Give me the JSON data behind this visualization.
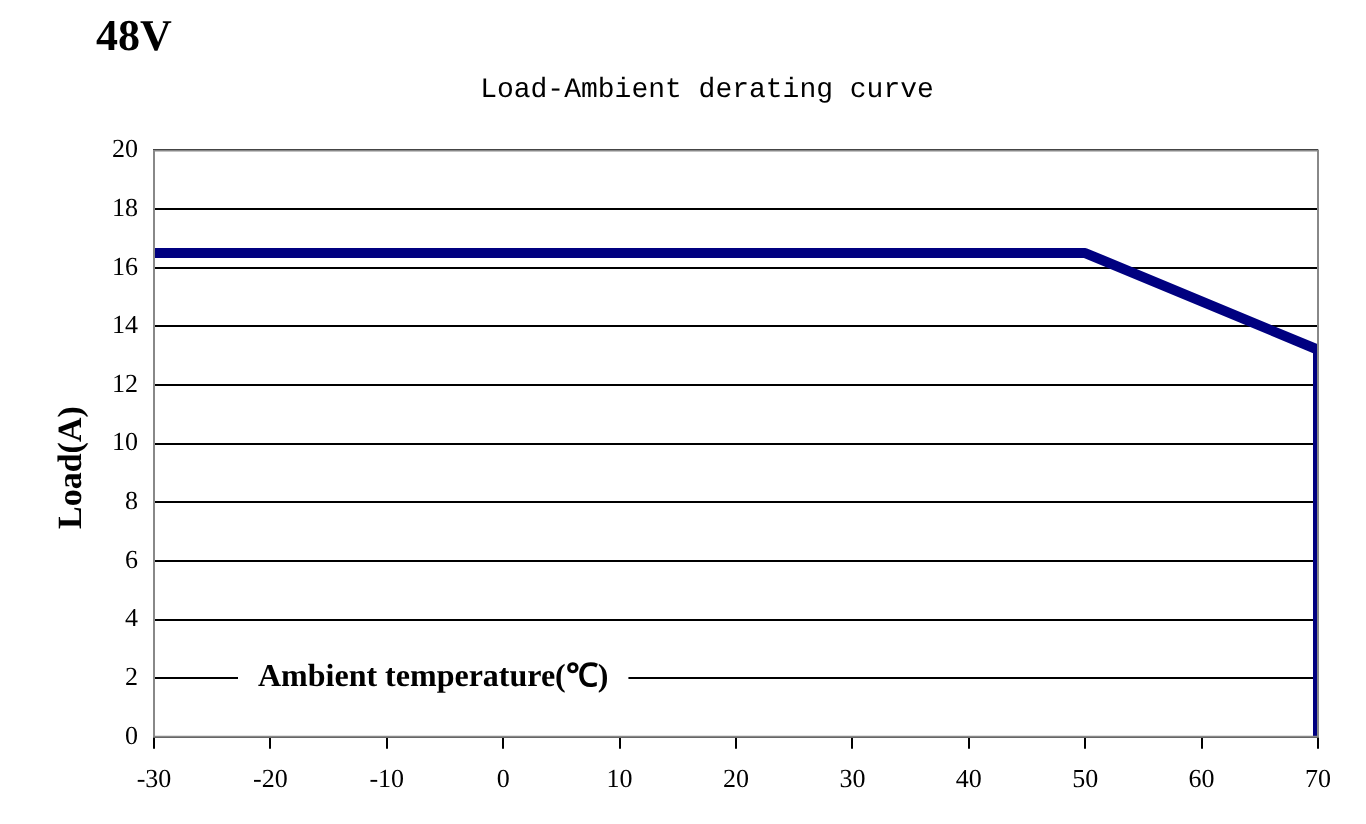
{
  "chart_data": {
    "type": "line",
    "title": "48V",
    "subtitle": "Load-Ambient derating curve",
    "xlabel": "Ambient temperature(℃)",
    "ylabel": "Load(A)",
    "series": [
      {
        "color": "#000080",
        "x": [
          -30,
          50,
          70,
          70
        ],
        "values": [
          16.5,
          16.5,
          13.2,
          0
        ]
      }
    ],
    "xlim": [
      -30,
      70
    ],
    "xticks": [
      -30,
      -20,
      -10,
      0,
      10,
      20,
      30,
      40,
      50,
      60,
      70
    ],
    "ylim": [
      0,
      20
    ],
    "yticks": [
      0,
      2,
      4,
      6,
      8,
      10,
      12,
      14,
      16,
      18,
      20
    ],
    "grid": "y",
    "legend": false,
    "marker": "none",
    "line_style": "solid"
  }
}
